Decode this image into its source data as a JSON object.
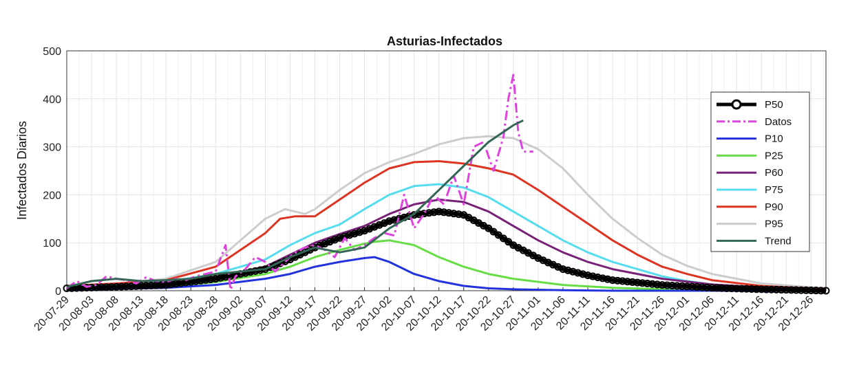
{
  "chart_data": {
    "type": "line",
    "title": "Asturias-Infectados",
    "xlabel": "",
    "ylabel": "Infectados Diarios",
    "ylim": [
      0,
      500
    ],
    "yticks": [
      0,
      100,
      200,
      300,
      400,
      500
    ],
    "xlim_days": [
      0,
      153
    ],
    "grid": true,
    "legend_position": "top-right",
    "x_tick_labels": [
      "20-07-29",
      "20-08-03",
      "20-08-08",
      "20-08-13",
      "20-08-18",
      "20-08-23",
      "20-08-28",
      "20-09-02",
      "20-09-07",
      "20-09-12",
      "20-09-17",
      "20-09-22",
      "20-09-27",
      "20-10-02",
      "20-10-07",
      "20-10-12",
      "20-10-17",
      "20-10-22",
      "20-10-27",
      "20-11-01",
      "20-11-06",
      "20-11-11",
      "20-11-16",
      "20-11-21",
      "20-11-26",
      "20-12-01",
      "20-12-06",
      "20-12-11",
      "20-12-16",
      "20-12-21",
      "20-12-26"
    ],
    "series": [
      {
        "name": "P50",
        "color": "#000000",
        "style": "solid-marker",
        "x": [
          0,
          10,
          20,
          30,
          40,
          45,
          50,
          55,
          60,
          65,
          70,
          75,
          80,
          85,
          90,
          95,
          100,
          105,
          110,
          120,
          130,
          140,
          153
        ],
        "y": [
          5,
          8,
          12,
          25,
          45,
          65,
          90,
          110,
          125,
          145,
          158,
          165,
          158,
          130,
          95,
          68,
          45,
          32,
          22,
          12,
          6,
          3,
          0
        ]
      },
      {
        "name": "Datos",
        "color": "#dd44dd",
        "style": "dash-dot",
        "x": [
          0,
          2,
          4,
          6,
          8,
          10,
          12,
          14,
          16,
          18,
          20,
          22,
          24,
          26,
          28,
          30,
          32,
          33,
          34,
          36,
          38,
          40,
          42,
          44,
          46,
          48,
          50,
          52,
          54,
          55,
          56,
          58,
          60,
          62,
          64,
          66,
          68,
          70,
          72,
          74,
          76,
          78,
          80,
          82,
          84,
          86,
          88,
          89,
          90,
          91,
          92,
          94
        ],
        "y": [
          5,
          20,
          8,
          12,
          30,
          25,
          22,
          15,
          28,
          20,
          18,
          25,
          22,
          30,
          35,
          40,
          95,
          2,
          30,
          45,
          70,
          60,
          40,
          60,
          80,
          90,
          95,
          85,
          70,
          90,
          110,
          85,
          95,
          110,
          120,
          115,
          200,
          130,
          160,
          200,
          180,
          240,
          180,
          300,
          310,
          250,
          320,
          400,
          450,
          330,
          290,
          290
        ]
      },
      {
        "name": "P10",
        "color": "#2233dd",
        "style": "solid",
        "x": [
          0,
          10,
          20,
          30,
          40,
          45,
          50,
          55,
          60,
          62,
          65,
          70,
          75,
          80,
          85,
          90,
          100,
          110,
          120,
          153
        ],
        "y": [
          2,
          4,
          6,
          12,
          25,
          35,
          50,
          60,
          68,
          70,
          60,
          35,
          20,
          10,
          5,
          3,
          1,
          0,
          0,
          0
        ]
      },
      {
        "name": "P25",
        "color": "#66dd44",
        "style": "solid",
        "x": [
          0,
          10,
          20,
          30,
          40,
          45,
          50,
          55,
          60,
          62,
          65,
          70,
          75,
          80,
          85,
          90,
          100,
          110,
          120,
          130,
          153
        ],
        "y": [
          3,
          5,
          8,
          18,
          35,
          50,
          70,
          85,
          98,
          102,
          105,
          95,
          70,
          50,
          35,
          25,
          12,
          6,
          3,
          1,
          0
        ]
      },
      {
        "name": "P60",
        "color": "#772277",
        "style": "solid",
        "x": [
          0,
          10,
          20,
          30,
          40,
          45,
          50,
          55,
          60,
          65,
          70,
          75,
          80,
          85,
          90,
          95,
          100,
          105,
          110,
          120,
          130,
          140,
          153
        ],
        "y": [
          6,
          10,
          15,
          28,
          50,
          75,
          100,
          118,
          135,
          160,
          180,
          190,
          185,
          165,
          135,
          105,
          80,
          60,
          45,
          25,
          13,
          7,
          2
        ]
      },
      {
        "name": "P75",
        "color": "#55ddee",
        "style": "solid",
        "x": [
          0,
          10,
          20,
          30,
          40,
          45,
          50,
          55,
          60,
          65,
          70,
          75,
          80,
          85,
          90,
          95,
          100,
          105,
          110,
          115,
          120,
          125,
          130,
          140,
          153
        ],
        "y": [
          8,
          12,
          18,
          35,
          65,
          95,
          120,
          138,
          170,
          200,
          218,
          222,
          215,
          195,
          165,
          135,
          105,
          80,
          60,
          45,
          30,
          20,
          13,
          5,
          2
        ]
      },
      {
        "name": "P90",
        "color": "#dd3322",
        "style": "solid",
        "x": [
          0,
          10,
          20,
          30,
          40,
          43,
          46,
          50,
          55,
          60,
          65,
          70,
          75,
          80,
          85,
          90,
          95,
          100,
          105,
          110,
          115,
          120,
          125,
          130,
          140,
          153
        ],
        "y": [
          10,
          15,
          22,
          50,
          120,
          150,
          155,
          155,
          190,
          225,
          255,
          268,
          270,
          265,
          255,
          242,
          210,
          175,
          140,
          105,
          75,
          50,
          35,
          22,
          10,
          3
        ]
      },
      {
        "name": "P95",
        "color": "#cccccc",
        "style": "solid",
        "x": [
          0,
          10,
          20,
          30,
          40,
          44,
          48,
          50,
          55,
          60,
          65,
          70,
          75,
          80,
          85,
          90,
          95,
          100,
          105,
          110,
          115,
          120,
          125,
          130,
          140,
          153
        ],
        "y": [
          10,
          15,
          25,
          60,
          150,
          170,
          160,
          170,
          210,
          245,
          268,
          285,
          305,
          318,
          322,
          318,
          295,
          255,
          200,
          150,
          110,
          75,
          52,
          35,
          15,
          5
        ]
      },
      {
        "name": "Trend",
        "color": "#336655",
        "style": "solid",
        "x": [
          0,
          5,
          10,
          15,
          20,
          25,
          30,
          35,
          40,
          45,
          50,
          55,
          60,
          65,
          70,
          75,
          80,
          85,
          90,
          92
        ],
        "y": [
          8,
          20,
          25,
          20,
          22,
          25,
          35,
          40,
          45,
          70,
          90,
          80,
          90,
          130,
          160,
          210,
          260,
          310,
          345,
          355
        ]
      }
    ]
  }
}
